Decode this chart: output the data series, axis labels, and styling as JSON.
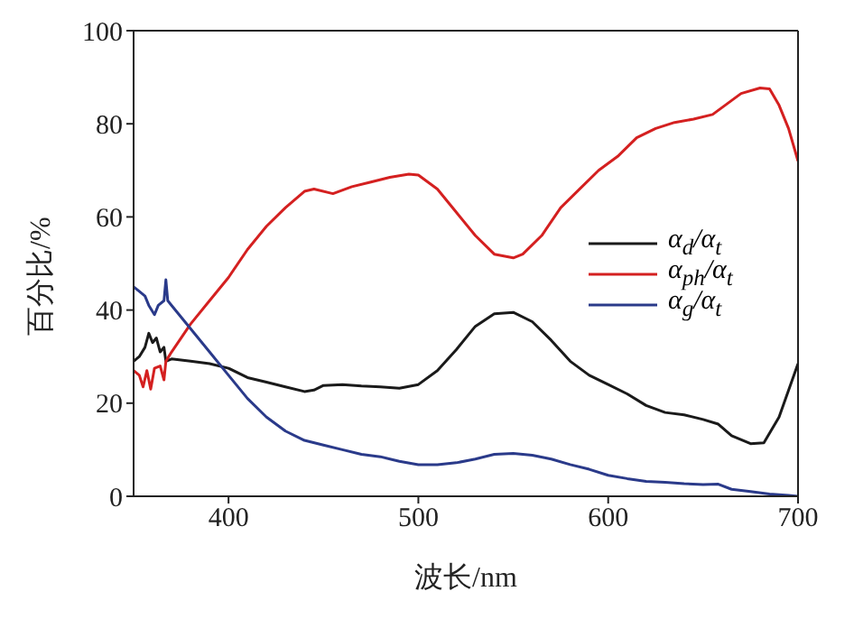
{
  "chart_data": {
    "type": "line",
    "xlabel": "波长/nm",
    "ylabel": "百分比/%",
    "xlim": [
      350,
      700
    ],
    "xticks": [
      400,
      500,
      600,
      700
    ],
    "ylim": [
      0,
      100
    ],
    "yticks": [
      0,
      20,
      40,
      60,
      80,
      100
    ],
    "grid": false,
    "legend": "right",
    "marker": "none",
    "line_style": "solid",
    "series": [
      {
        "name": "α$_{d}$/α$_{t}$",
        "color": "#1a1a1a",
        "x": [
          350,
          353,
          356,
          358,
          360,
          362,
          364,
          366,
          367,
          370,
          380,
          390,
          400,
          410,
          420,
          430,
          440,
          445,
          450,
          460,
          470,
          480,
          490,
          500,
          510,
          520,
          530,
          540,
          550,
          560,
          570,
          580,
          590,
          600,
          610,
          620,
          630,
          640,
          650,
          658,
          665,
          675,
          682,
          690,
          700
        ],
        "values": [
          29,
          30,
          32,
          35,
          33,
          34,
          31,
          32,
          29,
          29.5,
          29,
          28.5,
          27.5,
          25.5,
          24.5,
          23.5,
          22.5,
          22.8,
          23.8,
          24,
          23.7,
          23.5,
          23.2,
          24,
          27,
          31.5,
          36.5,
          39.2,
          39.5,
          37.5,
          33.5,
          29,
          26,
          24,
          22,
          19.5,
          18,
          17.5,
          16.5,
          15.5,
          13,
          11.3,
          11.5,
          17,
          28.5
        ]
      },
      {
        "name": "α$_{ph}$/α$_{t}$",
        "color": "#d42020",
        "x": [
          350,
          353,
          355,
          357,
          359,
          361,
          364,
          366,
          367,
          370,
          380,
          390,
          400,
          410,
          420,
          430,
          440,
          445,
          455,
          465,
          475,
          485,
          495,
          500,
          510,
          520,
          530,
          540,
          550,
          555,
          565,
          575,
          585,
          595,
          605,
          615,
          625,
          635,
          645,
          655,
          660,
          670,
          680,
          685,
          690,
          695,
          700
        ],
        "values": [
          27,
          26,
          23.5,
          27,
          23,
          27.5,
          28,
          25,
          29,
          31,
          37,
          42,
          47,
          53,
          58,
          62,
          65.5,
          66,
          65,
          66.5,
          67.5,
          68.5,
          69.2,
          69,
          66,
          61,
          56,
          52,
          51.2,
          52,
          56,
          62,
          66,
          70,
          73,
          77,
          79,
          80.3,
          81,
          82,
          83.5,
          86.5,
          87.7,
          87.5,
          84,
          79,
          72
        ]
      },
      {
        "name": "α$_{g}$/α$_{t}$",
        "color": "#2a3a8a",
        "x": [
          350,
          353,
          356,
          358,
          361,
          363,
          366,
          367,
          368,
          370,
          380,
          390,
          400,
          410,
          420,
          430,
          440,
          450,
          460,
          470,
          480,
          490,
          500,
          510,
          520,
          530,
          540,
          550,
          560,
          570,
          580,
          590,
          600,
          610,
          620,
          630,
          640,
          650,
          658,
          665,
          675,
          685,
          695,
          700
        ],
        "values": [
          45,
          44,
          43,
          41,
          39,
          41,
          42,
          46.5,
          42,
          41,
          36,
          31,
          26,
          21,
          17,
          14,
          12,
          11,
          10,
          9,
          8.5,
          7.5,
          6.8,
          6.8,
          7.2,
          8,
          9,
          9.2,
          8.8,
          8,
          6.8,
          5.8,
          4.5,
          3.8,
          3.2,
          3,
          2.7,
          2.5,
          2.6,
          1.5,
          1,
          0.5,
          0.2,
          0
        ]
      }
    ]
  }
}
